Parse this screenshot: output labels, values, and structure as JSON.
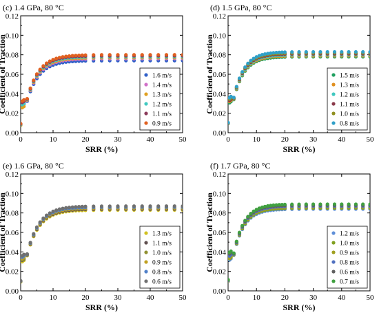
{
  "chart_data": [
    {
      "type": "scatter",
      "title": "(c) 1.4 GPa, 80 °C",
      "xlabel": "SRR (%)",
      "ylabel": "Coefficient of Traction",
      "xlim": [
        0,
        50
      ],
      "ylim": [
        0,
        0.12
      ],
      "xticks": [
        "0",
        "10",
        "20",
        "30",
        "40",
        "50"
      ],
      "yticks": [
        "0.00",
        "0.02",
        "0.04",
        "0.06",
        "0.08",
        "0.10",
        "0.12"
      ],
      "legend_position": "bottom-right",
      "series": [
        {
          "name": "1.6 m/s",
          "color": "#3060c8",
          "plateau": 0.074,
          "p0": 0.031
        },
        {
          "name": "1.4 m/s",
          "color": "#d070c8",
          "plateau": 0.076,
          "p0": 0.031
        },
        {
          "name": "1.3 m/s",
          "color": "#e0a020",
          "plateau": 0.077,
          "p0": 0.027
        },
        {
          "name": "1.2 m/s",
          "color": "#40c8c0",
          "plateau": 0.078,
          "p0": 0.03
        },
        {
          "name": "1.1 m/s",
          "color": "#8a3a5a",
          "plateau": 0.079,
          "p0": 0.032
        },
        {
          "name": "0.9 m/s",
          "color": "#e06020",
          "plateau": 0.08,
          "p0": 0.033
        }
      ]
    },
    {
      "type": "scatter",
      "title": "(d) 1.5 GPa, 80 °C",
      "xlabel": "SRR (%)",
      "ylabel": "Coefficient of Traction",
      "xlim": [
        0,
        50
      ],
      "ylim": [
        0,
        0.12
      ],
      "xticks": [
        "0",
        "10",
        "20",
        "30",
        "40",
        "50"
      ],
      "yticks": [
        "0.00",
        "0.02",
        "0.04",
        "0.06",
        "0.08",
        "0.10",
        "0.12"
      ],
      "legend_position": "bottom-right",
      "series": [
        {
          "name": "1.5 m/s",
          "color": "#20a060",
          "plateau": 0.078,
          "p0": 0.034
        },
        {
          "name": "1.3 m/s",
          "color": "#e09020",
          "plateau": 0.079,
          "p0": 0.035
        },
        {
          "name": "1.2 m/s",
          "color": "#40c8c0",
          "plateau": 0.08,
          "p0": 0.036
        },
        {
          "name": "1.1 m/s",
          "color": "#8a3a4a",
          "plateau": 0.081,
          "p0": 0.035
        },
        {
          "name": "1.0 m/s",
          "color": "#909020",
          "plateau": 0.082,
          "p0": 0.036
        },
        {
          "name": "0.8 m/s",
          "color": "#30a0c8",
          "plateau": 0.083,
          "p0": 0.037
        }
      ]
    },
    {
      "type": "scatter",
      "title": "(e) 1.6 GPa, 80 °C",
      "xlabel": "SRR (%)",
      "ylabel": "Coefficient of Traction",
      "xlim": [
        0,
        50
      ],
      "ylim": [
        0,
        0.12
      ],
      "xticks": [
        "0",
        "10",
        "20",
        "30",
        "40",
        "50"
      ],
      "yticks": [
        "0.00",
        "0.02",
        "0.04",
        "0.06",
        "0.08",
        "0.10",
        "0.12"
      ],
      "legend_position": "bottom-right",
      "series": [
        {
          "name": "1.3 m/s",
          "color": "#d0c020",
          "plateau": 0.083,
          "p0": 0.033
        },
        {
          "name": "1.1 m/s",
          "color": "#605050",
          "plateau": 0.084,
          "p0": 0.034
        },
        {
          "name": "1.0 m/s",
          "color": "#909030",
          "plateau": 0.085,
          "p0": 0.034
        },
        {
          "name": "0.9 m/s",
          "color": "#c0a020",
          "plateau": 0.085,
          "p0": 0.035
        },
        {
          "name": "0.8 m/s",
          "color": "#5080c8",
          "plateau": 0.086,
          "p0": 0.036
        },
        {
          "name": "0.6 m/s",
          "color": "#707070",
          "plateau": 0.087,
          "p0": 0.037
        }
      ]
    },
    {
      "type": "scatter",
      "title": "(f) 1.7 GPa, 80 °C",
      "xlabel": "SRR (%)",
      "ylabel": "Coefficient of Traction",
      "xlim": [
        0,
        50
      ],
      "ylim": [
        0,
        0.12
      ],
      "xticks": [
        "0",
        "10",
        "20",
        "30",
        "40",
        "50"
      ],
      "yticks": [
        "0.00",
        "0.02",
        "0.04",
        "0.06",
        "0.08",
        "0.10",
        "0.12"
      ],
      "legend_position": "bottom-right",
      "series": [
        {
          "name": "1.2 m/s",
          "color": "#6090d8",
          "plateau": 0.084,
          "p0": 0.035
        },
        {
          "name": "1.0 m/s",
          "color": "#80a020",
          "plateau": 0.085,
          "p0": 0.036
        },
        {
          "name": "0.9 m/s",
          "color": "#a0a020",
          "plateau": 0.086,
          "p0": 0.036
        },
        {
          "name": "0.8 m/s",
          "color": "#5070c0",
          "plateau": 0.087,
          "p0": 0.038
        },
        {
          "name": "0.6 m/s",
          "color": "#606060",
          "plateau": 0.088,
          "p0": 0.04
        },
        {
          "name": "0.7 m/s",
          "color": "#40a040",
          "plateau": 0.089,
          "p0": 0.041
        }
      ]
    }
  ]
}
